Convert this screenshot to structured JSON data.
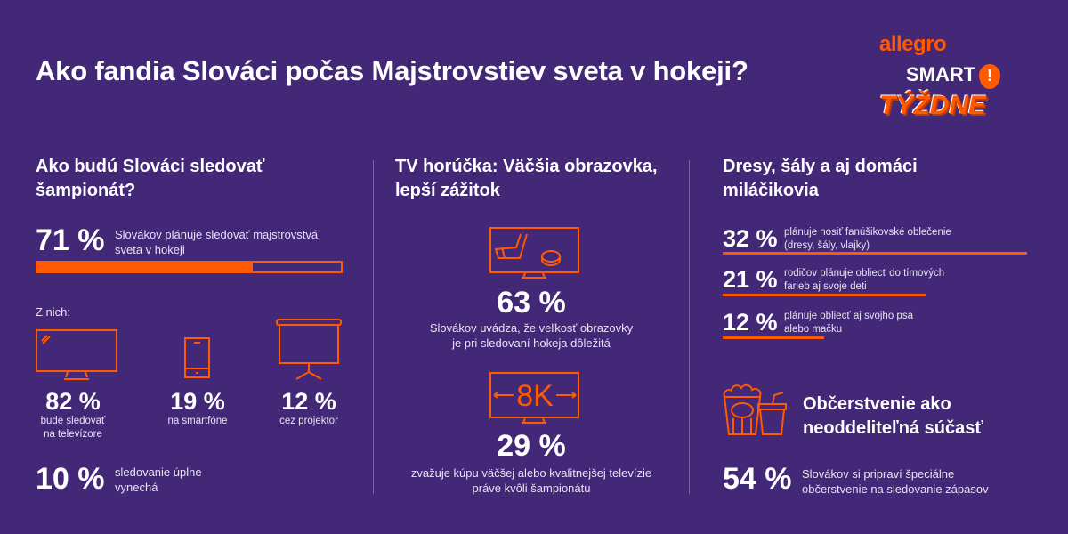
{
  "title": "Ako fandia Slováci počas Majstrovstiev sveta v hokeji?",
  "logo": {
    "line1": "allegro",
    "line2": "SMART",
    "line3": "TÝŽDNE"
  },
  "colors": {
    "background": "#432878",
    "accent": "#ff5a00"
  },
  "col1": {
    "heading": [
      "Ako budú Slováci sledovať",
      "šampionát?"
    ],
    "main": {
      "value": "71 %",
      "text": [
        "Slovákov plánuje sledovať majstrovstvá",
        "sveta v hokeji"
      ],
      "progress": 71
    },
    "sub_label": "Z nich:",
    "devices": [
      {
        "icon": "tv-icon",
        "value": "82 %",
        "text": [
          "bude sledovať",
          "na televízore"
        ]
      },
      {
        "icon": "smartphone-icon",
        "value": "19 %",
        "text": [
          "na smartfóne"
        ]
      },
      {
        "icon": "projector-icon",
        "value": "12 %",
        "text": [
          "cez projektor"
        ]
      }
    ],
    "skip": {
      "value": "10 %",
      "text": [
        "sledovanie úplne",
        "vynechá"
      ]
    }
  },
  "col2": {
    "heading": [
      "TV horúčka: Väčšia obrazovka,",
      "lepší zážitok"
    ],
    "stats": [
      {
        "icon": "tv-hockey-icon",
        "value": "63 %",
        "text": [
          "Slovákov uvádza, že veľkosť obrazovky",
          "je pri sledovaní hokeja dôležitá"
        ]
      },
      {
        "icon": "tv-8k-icon",
        "icon_label": "8K",
        "value": "29 %",
        "text": [
          "zvažuje kúpu väčšej alebo kvalitnejšej televízie",
          "práve kvôli šampionátu"
        ]
      }
    ]
  },
  "col3": {
    "heading": [
      "Dresy, šály a aj domáci",
      "miláčikovia"
    ],
    "stats": [
      {
        "value": "32 %",
        "text": [
          "plánuje nosiť fanúšikovské oblečenie",
          "(dresy, šály, vlajky)"
        ],
        "percent": 32
      },
      {
        "value": "21 %",
        "text": [
          "rodičov plánuje obliecť do tímových",
          "farieb aj svoje deti"
        ],
        "percent": 21
      },
      {
        "value": "12 %",
        "text": [
          "plánuje obliecť aj svojho psa",
          "alebo mačku"
        ],
        "percent": 12
      }
    ],
    "snack": {
      "heading": [
        "Občerstvenie ako",
        "neoddeliteľná súčasť"
      ],
      "value": "54 %",
      "text": [
        "Slovákov si pripraví špeciálne",
        "občerstvenie na sledovanie zápasov"
      ]
    }
  }
}
